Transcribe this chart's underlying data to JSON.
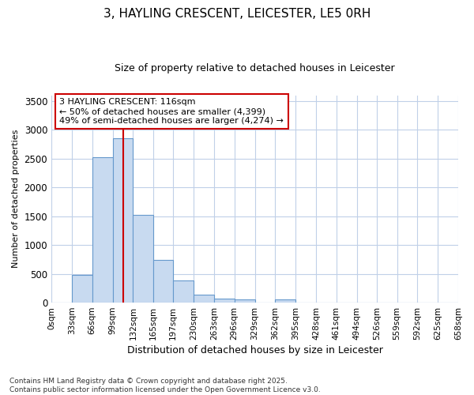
{
  "title": "3, HAYLING CRESCENT, LEICESTER, LE5 0RH",
  "subtitle": "Size of property relative to detached houses in Leicester",
  "xlabel": "Distribution of detached houses by size in Leicester",
  "ylabel": "Number of detached properties",
  "bar_color": "#c8daf0",
  "bar_edge_color": "#6699cc",
  "background_color": "#ffffff",
  "grid_color": "#c0d0e8",
  "vline_color": "#cc0000",
  "vline_x": 116,
  "annotation_title": "3 HAYLING CRESCENT: 116sqm",
  "annotation_line1": "← 50% of detached houses are smaller (4,399)",
  "annotation_line2": "49% of semi-detached houses are larger (4,274) →",
  "footer_line1": "Contains HM Land Registry data © Crown copyright and database right 2025.",
  "footer_line2": "Contains public sector information licensed under the Open Government Licence v3.0.",
  "bin_edges": [
    0,
    33,
    66,
    99,
    132,
    165,
    197,
    230,
    263,
    296,
    329,
    362,
    395,
    428,
    461,
    494,
    526,
    559,
    592,
    625,
    658
  ],
  "bin_labels": [
    "0sqm",
    "33sqm",
    "66sqm",
    "99sqm",
    "132sqm",
    "165sqm",
    "197sqm",
    "230sqm",
    "263sqm",
    "296sqm",
    "329sqm",
    "362sqm",
    "395sqm",
    "428sqm",
    "461sqm",
    "494sqm",
    "526sqm",
    "559sqm",
    "592sqm",
    "625sqm",
    "658sqm"
  ],
  "bar_heights": [
    0,
    480,
    2520,
    2850,
    1530,
    740,
    380,
    140,
    70,
    55,
    0,
    55,
    0,
    0,
    0,
    0,
    0,
    0,
    0,
    0
  ],
  "ylim": [
    0,
    3600
  ],
  "yticks": [
    0,
    500,
    1000,
    1500,
    2000,
    2500,
    3000,
    3500
  ]
}
